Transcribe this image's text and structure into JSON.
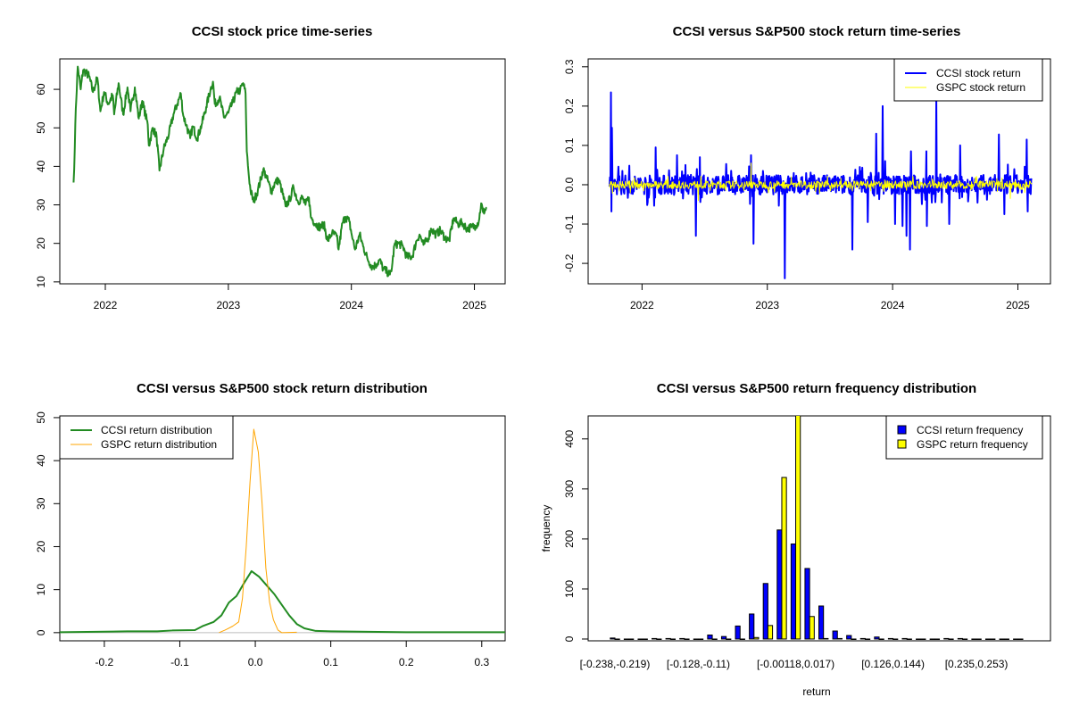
{
  "chart_data": [
    {
      "type": "line",
      "title": "CCSI stock price time-series",
      "xlabel": "",
      "ylabel": "",
      "xlim": [
        2021.63,
        2025.25
      ],
      "ylim": [
        9.5,
        67.9
      ],
      "x_ticks": [
        {
          "v": 2022,
          "label": "2022"
        },
        {
          "v": 2023,
          "label": "2023"
        },
        {
          "v": 2024,
          "label": "2024"
        },
        {
          "v": 2025,
          "label": "2025"
        }
      ],
      "y_ticks": [
        {
          "v": 10,
          "label": "10"
        },
        {
          "v": 20,
          "label": "20"
        },
        {
          "v": 30,
          "label": "30"
        },
        {
          "v": 40,
          "label": "40"
        },
        {
          "v": 50,
          "label": "50"
        },
        {
          "v": 60,
          "label": "60"
        }
      ],
      "color": "#228B22",
      "series": [
        {
          "name": "CCSI price",
          "points": [
            [
              2021.742,
              35.8
            ],
            [
              2021.752,
              45
            ],
            [
              2021.76,
              55
            ],
            [
              2021.776,
              65.9
            ],
            [
              2021.8,
              60
            ],
            [
              2021.82,
              65
            ],
            [
              2021.867,
              63.5
            ],
            [
              2021.9,
              59.3
            ],
            [
              2021.935,
              63
            ],
            [
              2021.96,
              54.3
            ],
            [
              2021.99,
              59.3
            ],
            [
              2022.024,
              56.2
            ],
            [
              2022.06,
              58.5
            ],
            [
              2022.072,
              53.5
            ],
            [
              2022.108,
              61.6
            ],
            [
              2022.145,
              53.5
            ],
            [
              2022.18,
              60.5
            ],
            [
              2022.205,
              54.3
            ],
            [
              2022.24,
              60.5
            ],
            [
              2022.272,
              52.4
            ],
            [
              2022.3,
              57
            ],
            [
              2022.345,
              50.8
            ],
            [
              2022.354,
              45.4
            ],
            [
              2022.386,
              50
            ],
            [
              2022.417,
              47.7
            ],
            [
              2022.44,
              38.9
            ],
            [
              2022.475,
              44.6
            ],
            [
              2022.518,
              48.5
            ],
            [
              2022.554,
              53.5
            ],
            [
              2022.585,
              56.2
            ],
            [
              2022.614,
              58.9
            ],
            [
              2022.634,
              53.1
            ],
            [
              2022.658,
              50.8
            ],
            [
              2022.69,
              47.3
            ],
            [
              2022.71,
              50.4
            ],
            [
              2022.747,
              47.3
            ],
            [
              2022.783,
              50.8
            ],
            [
              2022.82,
              55.4
            ],
            [
              2022.855,
              60
            ],
            [
              2022.875,
              62
            ],
            [
              2022.89,
              56.2
            ],
            [
              2022.928,
              57.8
            ],
            [
              2022.964,
              52.7
            ],
            [
              2023.0,
              53.9
            ],
            [
              2023.036,
              56.6
            ],
            [
              2023.067,
              59.3
            ],
            [
              2023.096,
              59.7
            ],
            [
              2023.12,
              61.6
            ],
            [
              2023.14,
              58.9
            ],
            [
              2023.15,
              43.9
            ],
            [
              2023.164,
              38.5
            ],
            [
              2023.18,
              33.8
            ],
            [
              2023.205,
              30.8
            ],
            [
              2023.24,
              33.8
            ],
            [
              2023.284,
              39.2
            ],
            [
              2023.313,
              36.9
            ],
            [
              2023.35,
              33.5
            ],
            [
              2023.38,
              35.8
            ],
            [
              2023.41,
              36.5
            ],
            [
              2023.434,
              33.8
            ],
            [
              2023.465,
              29.6
            ],
            [
              2023.5,
              31.5
            ],
            [
              2023.53,
              34.6
            ],
            [
              2023.566,
              30.8
            ],
            [
              2023.6,
              31.9
            ],
            [
              2023.627,
              30
            ],
            [
              2023.655,
              31.9
            ],
            [
              2023.67,
              26.9
            ],
            [
              2023.71,
              25
            ],
            [
              2023.747,
              24.2
            ],
            [
              2023.776,
              25
            ],
            [
              2023.807,
              20.7
            ],
            [
              2023.843,
              22.7
            ],
            [
              2023.88,
              21.9
            ],
            [
              2023.896,
              18.4
            ],
            [
              2023.928,
              25.3
            ],
            [
              2023.952,
              26.9
            ],
            [
              2023.983,
              25.7
            ],
            [
              2024.0,
              22.7
            ],
            [
              2024.03,
              18.4
            ],
            [
              2024.067,
              22.3
            ],
            [
              2024.096,
              19.2
            ],
            [
              2024.13,
              16.1
            ],
            [
              2024.17,
              13.8
            ],
            [
              2024.205,
              14.6
            ],
            [
              2024.23,
              15.7
            ],
            [
              2024.258,
              13.4
            ],
            [
              2024.29,
              12.6
            ],
            [
              2024.313,
              11.9
            ],
            [
              2024.33,
              13.8
            ],
            [
              2024.35,
              19.6
            ],
            [
              2024.386,
              20
            ],
            [
              2024.42,
              19.2
            ],
            [
              2024.45,
              16.5
            ],
            [
              2024.494,
              16.5
            ],
            [
              2024.53,
              20.7
            ],
            [
              2024.554,
              22.3
            ],
            [
              2024.586,
              19.6
            ],
            [
              2024.62,
              21.1
            ],
            [
              2024.65,
              23.8
            ],
            [
              2024.687,
              22.3
            ],
            [
              2024.723,
              23.4
            ],
            [
              2024.76,
              21.5
            ],
            [
              2024.795,
              20.7
            ],
            [
              2024.83,
              26.5
            ],
            [
              2024.867,
              25
            ],
            [
              2024.9,
              25.4
            ],
            [
              2024.94,
              23.8
            ],
            [
              2024.976,
              24.2
            ],
            [
              2025.01,
              24.6
            ],
            [
              2025.036,
              25.7
            ],
            [
              2025.055,
              30.4
            ],
            [
              2025.07,
              28.1
            ],
            [
              2025.1,
              29.2
            ]
          ]
        }
      ]
    },
    {
      "type": "line",
      "title": "CCSI versus S&P500 stock return time-series",
      "xlim": [
        2021.57,
        2025.26
      ],
      "ylim": [
        -0.252,
        0.32
      ],
      "x_ticks": [
        {
          "v": 2022,
          "label": "2022"
        },
        {
          "v": 2023,
          "label": "2023"
        },
        {
          "v": 2024,
          "label": "2024"
        },
        {
          "v": 2025,
          "label": "2025"
        }
      ],
      "y_ticks": [
        {
          "v": -0.2,
          "label": "-0.2"
        },
        {
          "v": -0.1,
          "label": "-0.1"
        },
        {
          "v": 0,
          "label": "0.0"
        },
        {
          "v": 0.1,
          "label": "0.1"
        },
        {
          "v": 0.2,
          "label": "0.2"
        },
        {
          "v": 0.3,
          "label": "0.3"
        }
      ],
      "x_range": [
        2021.74,
        2025.11
      ],
      "legend": {
        "position": "top-right",
        "entries": [
          {
            "label": "CCSI stock return",
            "color": "#0000FF"
          },
          {
            "label": "GSPC stock return",
            "color": "#FFFF00"
          }
        ]
      },
      "series": [
        {
          "name": "CCSI stock return",
          "color": "#0000FF",
          "typical_abs": 0.025,
          "spikes": [
            [
              2021.75,
              0.235
            ],
            [
              2021.755,
              -0.068
            ],
            [
              2021.76,
              0.145
            ],
            [
              2022.11,
              0.095
            ],
            [
              2022.28,
              0.075
            ],
            [
              2022.43,
              -0.13
            ],
            [
              2022.46,
              0.07
            ],
            [
              2022.87,
              0.075
            ],
            [
              2022.89,
              -0.15
            ],
            [
              2023.14,
              -0.238
            ],
            [
              2023.68,
              -0.165
            ],
            [
              2023.8,
              -0.095
            ],
            [
              2023.87,
              0.13
            ],
            [
              2023.92,
              0.2
            ],
            [
              2023.94,
              0.06
            ],
            [
              2024.02,
              -0.1
            ],
            [
              2024.08,
              -0.105
            ],
            [
              2024.11,
              -0.13
            ],
            [
              2024.14,
              -0.165
            ],
            [
              2024.145,
              0.085
            ],
            [
              2024.27,
              0.085
            ],
            [
              2024.275,
              -0.105
            ],
            [
              2024.35,
              0.22
            ],
            [
              2024.45,
              -0.1
            ],
            [
              2024.54,
              0.1
            ],
            [
              2024.85,
              0.128
            ],
            [
              2024.89,
              -0.075
            ],
            [
              2025.07,
              0.115
            ],
            [
              2025.08,
              -0.068
            ]
          ]
        },
        {
          "name": "GSPC stock return",
          "color": "#FFFF00",
          "typical_abs": 0.01,
          "spikes": [
            [
              2022.87,
              0.055
            ],
            [
              2022.45,
              -0.04
            ],
            [
              2024.94,
              -0.035
            ]
          ]
        }
      ]
    },
    {
      "type": "line",
      "title": "CCSI versus S&P500 stock return distribution",
      "xlim": [
        -0.259,
        0.331
      ],
      "ylim": [
        -1.9,
        50.4
      ],
      "x_ticks": [
        {
          "v": -0.2,
          "label": "-0.2"
        },
        {
          "v": -0.1,
          "label": "-0.1"
        },
        {
          "v": 0,
          "label": "0.0"
        },
        {
          "v": 0.1,
          "label": "0.1"
        },
        {
          "v": 0.2,
          "label": "0.2"
        },
        {
          "v": 0.3,
          "label": "0.3"
        }
      ],
      "y_ticks": [
        {
          "v": 0,
          "label": "0"
        },
        {
          "v": 10,
          "label": "10"
        },
        {
          "v": 20,
          "label": "20"
        },
        {
          "v": 30,
          "label": "30"
        },
        {
          "v": 40,
          "label": "40"
        },
        {
          "v": 50,
          "label": "50"
        }
      ],
      "legend": {
        "position": "top-left",
        "entries": [
          {
            "label": "CCSI return distribution",
            "color": "#228B22"
          },
          {
            "label": "GSPC return distribution",
            "color": "#FFA500"
          }
        ]
      },
      "series": [
        {
          "name": "CCSI return distribution",
          "color": "#228B22",
          "points": [
            [
              -0.259,
              0.1
            ],
            [
              -0.17,
              0.3
            ],
            [
              -0.13,
              0.3
            ],
            [
              -0.11,
              0.5
            ],
            [
              -0.08,
              0.6
            ],
            [
              -0.07,
              1.5
            ],
            [
              -0.055,
              2.5
            ],
            [
              -0.045,
              4
            ],
            [
              -0.035,
              7
            ],
            [
              -0.025,
              8.5
            ],
            [
              -0.015,
              11.5
            ],
            [
              -0.005,
              14.3
            ],
            [
              0.005,
              13
            ],
            [
              0.015,
              11
            ],
            [
              0.025,
              9
            ],
            [
              0.035,
              6.5
            ],
            [
              0.045,
              4
            ],
            [
              0.055,
              2
            ],
            [
              0.065,
              1
            ],
            [
              0.08,
              0.4
            ],
            [
              0.1,
              0.3
            ],
            [
              0.15,
              0.2
            ],
            [
              0.2,
              0.1
            ],
            [
              0.331,
              0.1
            ]
          ]
        },
        {
          "name": "GSPC return distribution",
          "color": "#FFA500",
          "points": [
            [
              -0.048,
              0
            ],
            [
              -0.04,
              0.6
            ],
            [
              -0.03,
              1.5
            ],
            [
              -0.022,
              2.5
            ],
            [
              -0.017,
              8
            ],
            [
              -0.012,
              20
            ],
            [
              -0.007,
              35
            ],
            [
              -0.002,
              47.3
            ],
            [
              0.004,
              42
            ],
            [
              0.009,
              30
            ],
            [
              0.014,
              15
            ],
            [
              0.019,
              7
            ],
            [
              0.024,
              3
            ],
            [
              0.03,
              0.6
            ],
            [
              0.035,
              0
            ],
            [
              0.055,
              0.1
            ]
          ]
        }
      ]
    },
    {
      "type": "bar",
      "title": "CCSI versus S&P500 return frequency distribution",
      "xlabel": "return",
      "ylabel": "frequency",
      "ylim": [
        -3.6,
        446
      ],
      "y_ticks": [
        {
          "v": 0,
          "label": "0"
        },
        {
          "v": 100,
          "label": "100"
        },
        {
          "v": 200,
          "label": "200"
        },
        {
          "v": 300,
          "label": "300"
        },
        {
          "v": 400,
          "label": "400"
        }
      ],
      "x_tick_labels": [
        {
          "bin": 0,
          "label": "[-0.238,-0.219)"
        },
        {
          "bin": 6,
          "label": "[-0.128,-0.11)"
        },
        {
          "bin": 13,
          "label": "[-0.00118,0.017)"
        },
        {
          "bin": 20,
          "label": "[0.126,0.144)"
        },
        {
          "bin": 26,
          "label": "[0.235,0.253)"
        }
      ],
      "legend": {
        "position": "top-right",
        "entries": [
          {
            "label": "CCSI return frequency",
            "color": "#0000FF"
          },
          {
            "label": "GSPC return frequency",
            "color": "#FFFF00"
          }
        ]
      },
      "series": [
        {
          "name": "CCSI return frequency",
          "color": "#0000FF",
          "values": [
            2,
            0,
            0,
            1,
            1,
            1,
            0,
            8,
            5,
            26,
            50,
            111,
            218,
            190,
            141,
            66,
            16,
            7,
            1,
            4,
            1,
            1,
            0,
            0,
            1,
            1,
            0,
            0,
            0,
            0
          ]
        },
        {
          "name": "GSPC return frequency",
          "color": "#FFFF00",
          "values": [
            0,
            0,
            0,
            0,
            0,
            0,
            0,
            0,
            0,
            0,
            3,
            27,
            323,
            452,
            45,
            1,
            1,
            0,
            0,
            0,
            0,
            0,
            0,
            0,
            0,
            0,
            0,
            0,
            0,
            0
          ]
        }
      ]
    }
  ]
}
